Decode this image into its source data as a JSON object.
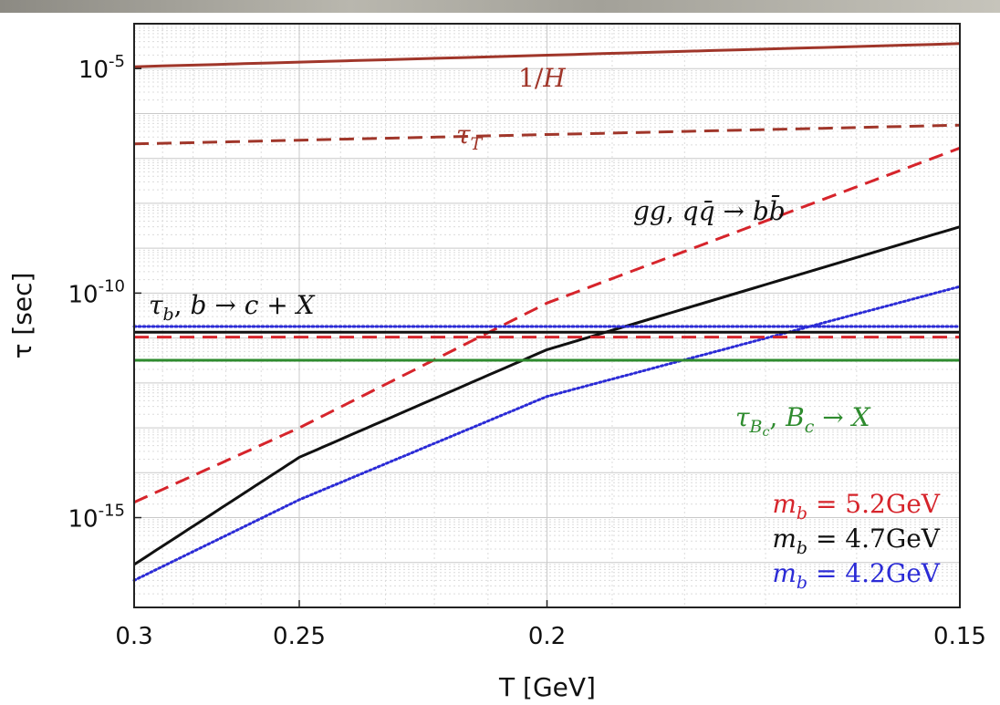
{
  "chart_data": {
    "type": "line",
    "xlabel": "T [GeV]",
    "ylabel": "τ [sec]",
    "x_axis": {
      "reversed": true,
      "reciprocal_scale": true,
      "xlim": [
        0.3,
        0.15
      ],
      "ticks": [
        0.3,
        0.25,
        0.2,
        0.15
      ],
      "tick_labels": [
        "0.3",
        "0.25",
        "0.2",
        "0.15"
      ]
    },
    "y_axis": {
      "scale": "log",
      "ylim": [
        1e-17,
        0.0001
      ],
      "ticks": [
        1e-05,
        1e-10,
        1e-15
      ]
    },
    "grid": true,
    "series": [
      {
        "name": "1/H",
        "color": "#a0362a",
        "style": "solid",
        "x": [
          0.3,
          0.15
        ],
        "y": [
          1.1e-05,
          3.6e-05
        ]
      },
      {
        "name": "τ_T",
        "color": "#a0362a",
        "style": "dashed",
        "x": [
          0.3,
          0.15
        ],
        "y": [
          2.1e-07,
          5.5e-07
        ]
      },
      {
        "name": "m_b = 5.2GeV",
        "color": "#d6242b",
        "style": "dashed",
        "x": [
          0.3,
          0.25,
          0.2,
          0.15
        ],
        "y": [
          2.2e-15,
          1e-13,
          6e-11,
          1.7e-07
        ]
      },
      {
        "name": "m_b = 4.7GeV",
        "color": "#111111",
        "style": "solid",
        "x": [
          0.3,
          0.25,
          0.2,
          0.15
        ],
        "y": [
          9e-17,
          2.2e-14,
          5.5e-12,
          3e-09
        ]
      },
      {
        "name": "m_b = 4.2GeV",
        "color": "#2b2bd6",
        "style": "dotted",
        "x": [
          0.3,
          0.25,
          0.2,
          0.15
        ],
        "y": [
          4e-17,
          2.5e-15,
          5e-13,
          1.4e-10
        ]
      },
      {
        "name": "τ_b, b → c + X (4.2GeV)",
        "color": "#2b2bd6",
        "style": "dotted",
        "x": [
          0.3,
          0.15
        ],
        "y": [
          1.8e-11,
          1.8e-11
        ]
      },
      {
        "name": "τ_b, b → c + X (4.7GeV)",
        "color": "#111111",
        "style": "solid",
        "x": [
          0.3,
          0.15
        ],
        "y": [
          1.35e-11,
          1.35e-11
        ]
      },
      {
        "name": "τ_b, b → c + X (5.2GeV)",
        "color": "#d6242b",
        "style": "dashed",
        "x": [
          0.3,
          0.15
        ],
        "y": [
          1.05e-11,
          1.05e-11
        ]
      },
      {
        "name": "τ_Bc, B_c → X",
        "color": "#2e8b2e",
        "style": "solid",
        "x": [
          0.3,
          0.15
        ],
        "y": [
          3.2e-12,
          3.2e-12
        ]
      }
    ],
    "annotations": {
      "hubble": "1/H",
      "tau_T": "τ_T",
      "production": "gg, qq̄ → bb̄",
      "tau_b": "τ_b, b → c + X",
      "tau_Bc": "τ_Bc, B_c → X"
    },
    "legend": {
      "placement": "bottom-right",
      "entries": [
        {
          "text": "m_b = 5.2GeV",
          "color": "#d6242b"
        },
        {
          "text": "m_b = 4.7GeV",
          "color": "#111111"
        },
        {
          "text": "m_b = 4.2GeV",
          "color": "#2b2bd6"
        }
      ]
    }
  }
}
